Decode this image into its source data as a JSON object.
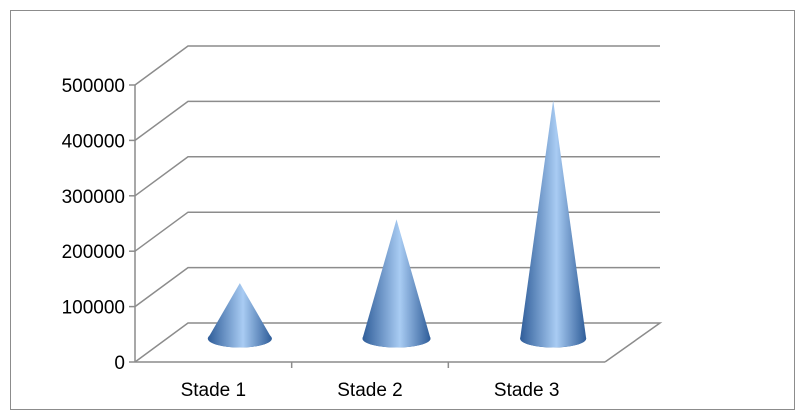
{
  "chart_data": {
    "type": "bar",
    "style": "3d-cone",
    "title": "",
    "xlabel": "",
    "ylabel": "",
    "categories": [
      "Stade 1",
      "Stade 2",
      "Stade 3"
    ],
    "series": [
      {
        "values": [
          100000,
          215000,
          430000
        ]
      }
    ],
    "ylim": [
      0,
      500000
    ],
    "yticks": [
      0,
      100000,
      200000,
      300000,
      400000,
      500000
    ],
    "ytick_labels": [
      "0",
      "100000",
      "200000",
      "300000",
      "400000",
      "500000"
    ],
    "grid": true,
    "legend": "none",
    "colors": {
      "cone_dark": "#2f5d99",
      "cone_mid": "#5b8fd1",
      "cone_light": "#a9ccf3",
      "grid": "#8c8c8c",
      "frame": "#8c8c8c"
    }
  }
}
